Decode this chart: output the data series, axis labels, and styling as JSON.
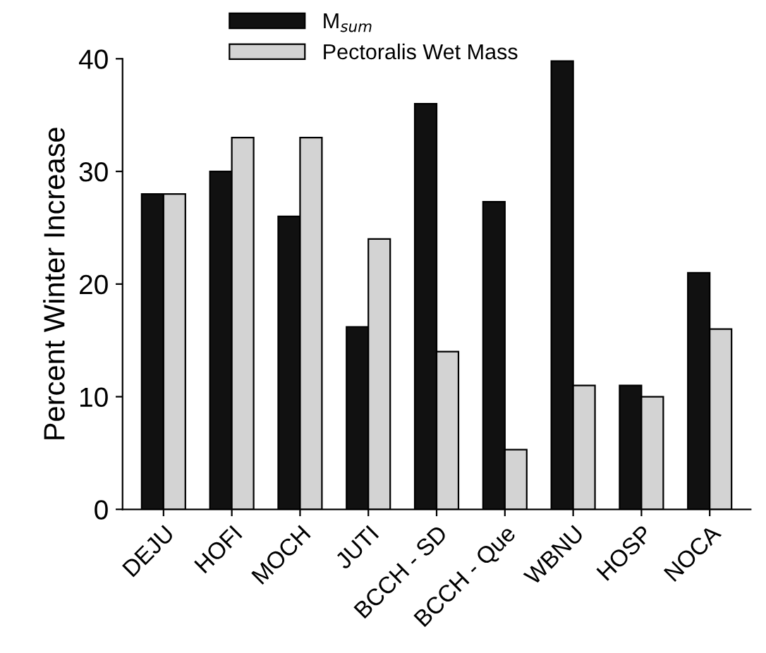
{
  "chart_data": {
    "type": "bar",
    "ylabel": "Percent Winter Increase",
    "categories": [
      "DEJU",
      "HOFI",
      "MOCH",
      "JUTI",
      "BCCH - SD",
      "BCCH - Que",
      "WBNU",
      "HOSP",
      "NOCA"
    ],
    "series": [
      {
        "name": "M$_{sum}$",
        "color": "#111111",
        "values": [
          28,
          30,
          26,
          16.2,
          36,
          27.3,
          39.8,
          11,
          21
        ]
      },
      {
        "name": "Pectoralis Wet Mass",
        "color": "#d3d3d3",
        "values": [
          28,
          33,
          33,
          24,
          14,
          5.3,
          11,
          10,
          16
        ]
      }
    ],
    "ylim": [
      0,
      40
    ],
    "yticks": [
      0,
      10,
      20,
      30,
      40
    ],
    "grid": false,
    "legend": "top"
  }
}
